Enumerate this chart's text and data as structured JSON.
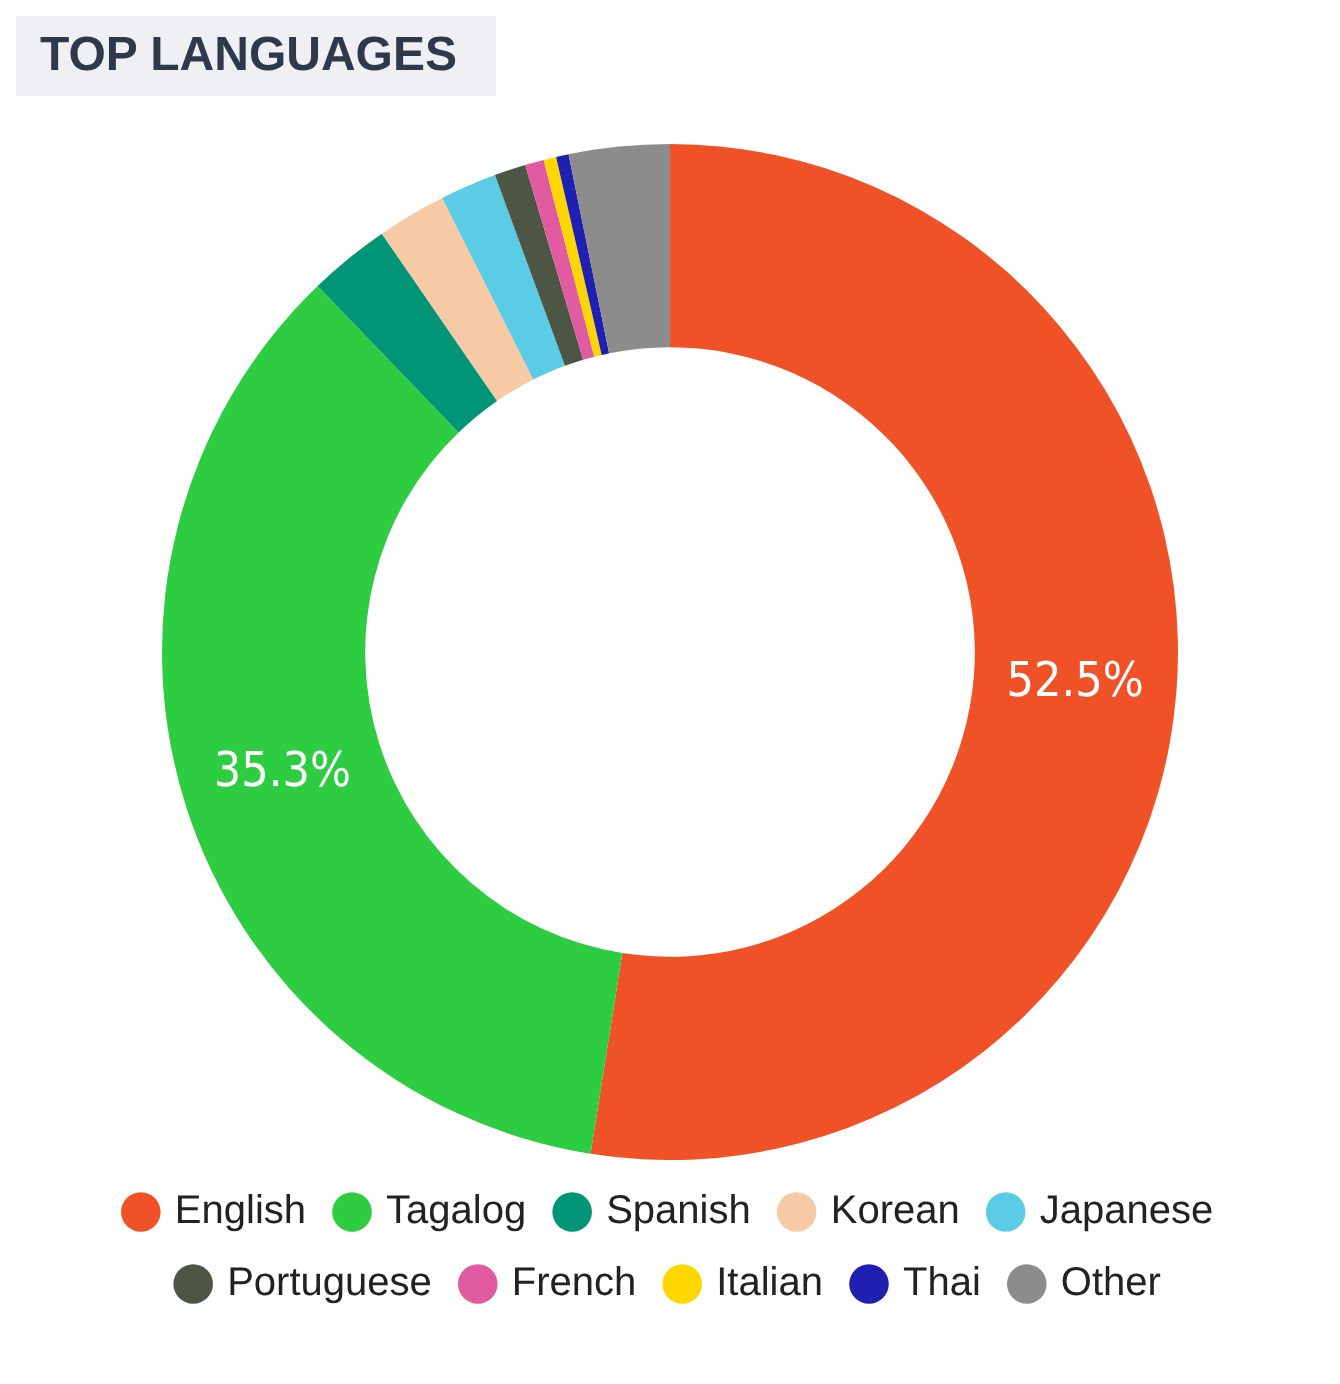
{
  "chart_data": {
    "type": "donut",
    "title": "TOP LANGUAGES",
    "categories": [
      "English",
      "Tagalog",
      "Spanish",
      "Korean",
      "Japanese",
      "Portuguese",
      "French",
      "Italian",
      "Thai",
      "Other"
    ],
    "values": [
      52.5,
      35.3,
      2.6,
      2.2,
      1.8,
      1.0,
      0.6,
      0.4,
      0.4,
      3.2
    ],
    "colors": [
      "#f05228",
      "#2ecc40",
      "#009577",
      "#f7c9a5",
      "#5bcbe6",
      "#4d5545",
      "#e05ba0",
      "#ffd700",
      "#2020b0",
      "#8c8c8c"
    ],
    "value_labels": [
      "52.5%",
      "35.3%",
      null,
      null,
      null,
      null,
      null,
      null,
      null,
      null
    ],
    "legend": "bottom"
  }
}
